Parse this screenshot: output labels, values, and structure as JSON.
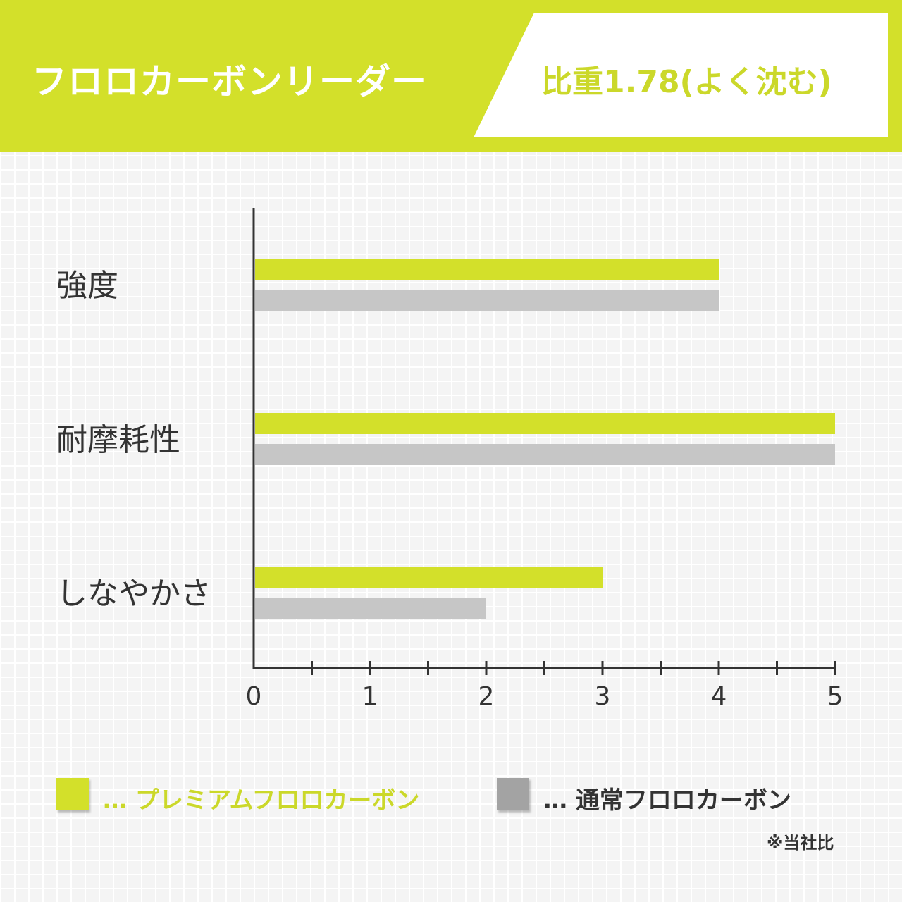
{
  "header": {
    "title": "フロロカーボンリーダー",
    "subtitle": "比重1.78(よく沈む)",
    "accent_color": "#d3e02a"
  },
  "chart_data": {
    "type": "bar",
    "orientation": "horizontal",
    "categories": [
      "強度",
      "耐摩耗性",
      "しなやかさ"
    ],
    "series": [
      {
        "name": "プレミアムフロロカーボン",
        "values": [
          4,
          5,
          3
        ],
        "color": "#d3e02a"
      },
      {
        "name": "通常フロロカーボン",
        "values": [
          4,
          5,
          2
        ],
        "color": "#c6c6c6"
      }
    ],
    "x_ticks": [
      "0",
      "1",
      "2",
      "3",
      "4",
      "5"
    ],
    "xlim": [
      0,
      5
    ],
    "grid": false,
    "legend_position": "bottom"
  },
  "legend": {
    "items": [
      {
        "prefix": "…",
        "label": "プレミアムフロロカーボン",
        "swatch_color": "#d3e02a",
        "text_color": "#cbd82a"
      },
      {
        "prefix": "…",
        "label": "通常フロロカーボン",
        "swatch_color": "#a3a3a3",
        "text_color": "#333333"
      }
    ]
  },
  "footnote": "※当社比"
}
